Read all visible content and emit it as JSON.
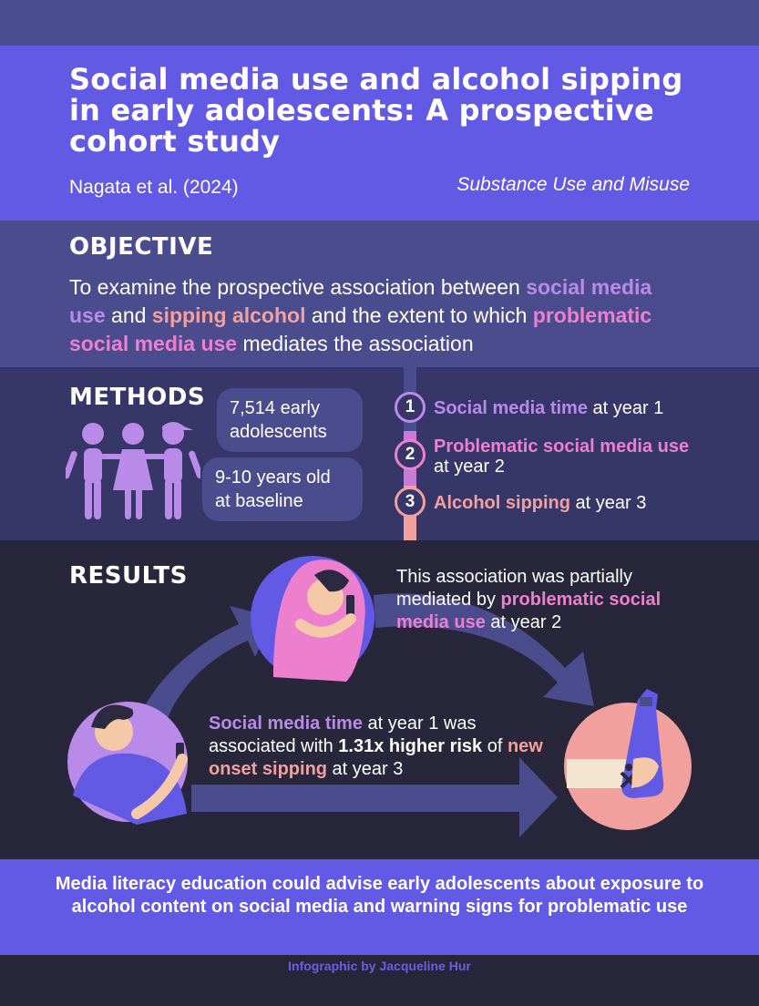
{
  "title": "Social media use and alcohol sipping in early adolescents: A prospective cohort study",
  "author": "Nagata et al. (2024)",
  "journal": "Substance Use and Misuse",
  "objective": {
    "heading": "OBJECTIVE",
    "t1": "To examine the prospective association between ",
    "h1": "social media use",
    "t2": " and ",
    "h2": "sipping alcohol",
    "t3": " and the extent to which ",
    "h3": "problematic social media use",
    "t4": " mediates the association"
  },
  "methods": {
    "heading": "METHODS",
    "participants": "7,514 early adolescents",
    "age": "9-10 years old at baseline",
    "steps": [
      {
        "num": "1",
        "highlight": "Social media time",
        "rest": " at year 1"
      },
      {
        "num": "2",
        "highlight": "Problematic social media use",
        "rest": " at year 2"
      },
      {
        "num": "3",
        "highlight": "Alcohol sipping",
        "rest": " at year 3"
      }
    ]
  },
  "results": {
    "heading": "RESULTS",
    "mediation": {
      "t1": "This association was partially mediated by ",
      "h1": "problematic social media use",
      "t2": " at year 2"
    },
    "main": {
      "h1": "Social media time",
      "t1": " at year 1 was associated with ",
      "b1": "1.31x higher risk",
      "t2": " of ",
      "h2": "new onset sipping",
      "t3": " at year 3"
    }
  },
  "conclusion": "Media literacy education could advise early adolescents about exposure to alcohol content on social media and warning signs for problematic use",
  "footer": "Infographic by Jacqueline Hur",
  "colors": {
    "purple": "#b98ae8",
    "pink": "#ec80cf",
    "salmon": "#f2a09e",
    "band": "#6259e5"
  }
}
